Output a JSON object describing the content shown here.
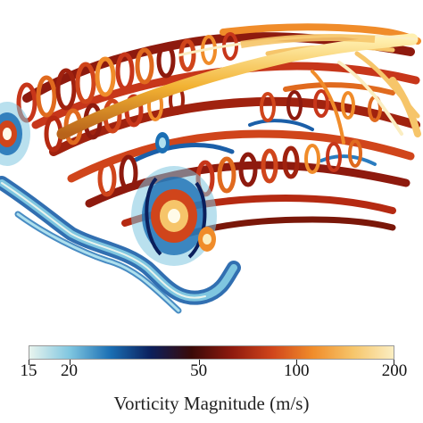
{
  "figure": {
    "visualization": "3d-vorticity-isosurfaces",
    "colorbar": {
      "title": "Vorticity Magnitude (m/s)",
      "ticks": [
        "15",
        "20",
        "50",
        "100",
        "200"
      ],
      "tick_values": [
        15,
        20,
        50,
        100,
        200
      ],
      "range": [
        15,
        200
      ],
      "scale": "log",
      "colors": [
        "#e8f4ee",
        "#7fc6e0",
        "#1b6fb4",
        "#0b1f5c",
        "#3a0a08",
        "#8e1a0e",
        "#d0451b",
        "#f08c2a",
        "#f6c56a",
        "#fbeec2"
      ]
    }
  }
}
